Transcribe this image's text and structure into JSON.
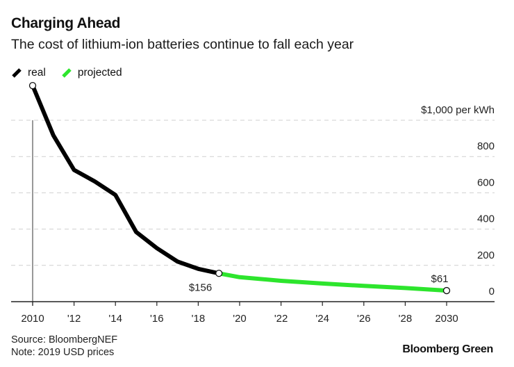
{
  "header": {
    "title": "Charging Ahead",
    "subtitle": "The cost of lithium-ion batteries continue to fall each year"
  },
  "footer": {
    "source": "Source: BloombergNEF",
    "note": "Note: 2019 USD prices",
    "brand": "Bloomberg Green"
  },
  "chart_data": {
    "type": "line",
    "title": "Charging Ahead",
    "subtitle": "The cost of lithium-ion batteries continue to fall each year",
    "xlabel": "",
    "ylabel": "per kWh",
    "xlim": [
      2010,
      2030
    ],
    "ylim": [
      0,
      1000
    ],
    "grid": true,
    "legend_position": "top-left",
    "legend": [
      {
        "name": "real",
        "color": "#000000"
      },
      {
        "name": "projected",
        "color": "#2de52d"
      }
    ],
    "x_ticks": [
      2010,
      2012,
      2014,
      2016,
      2018,
      2020,
      2022,
      2024,
      2026,
      2028,
      2030
    ],
    "x_tick_labels": [
      "2010",
      "'12",
      "'14",
      "'16",
      "'18",
      "'20",
      "'22",
      "'24",
      "'26",
      "'28",
      "2030"
    ],
    "y_ticks": [
      0,
      200,
      400,
      600,
      800,
      1000
    ],
    "y_tick_labels": [
      "0",
      "200",
      "400",
      "600",
      "800",
      "$1,000"
    ],
    "y_unit_label": "per kWh",
    "series": [
      {
        "name": "real",
        "color": "#000000",
        "x": [
          2010,
          2011,
          2012,
          2013,
          2014,
          2015,
          2016,
          2017,
          2018,
          2019
        ],
        "values": [
          1191,
          917,
          726,
          663,
          588,
          384,
          295,
          221,
          181,
          156
        ]
      },
      {
        "name": "projected",
        "color": "#2de52d",
        "x": [
          2019,
          2020,
          2022,
          2024,
          2026,
          2028,
          2030
        ],
        "values": [
          156,
          135,
          115,
          100,
          87,
          75,
          61
        ]
      }
    ],
    "annotations": [
      {
        "x": 2019,
        "y": 156,
        "text": "$156"
      },
      {
        "x": 2030,
        "y": 61,
        "text": "$61"
      }
    ]
  }
}
